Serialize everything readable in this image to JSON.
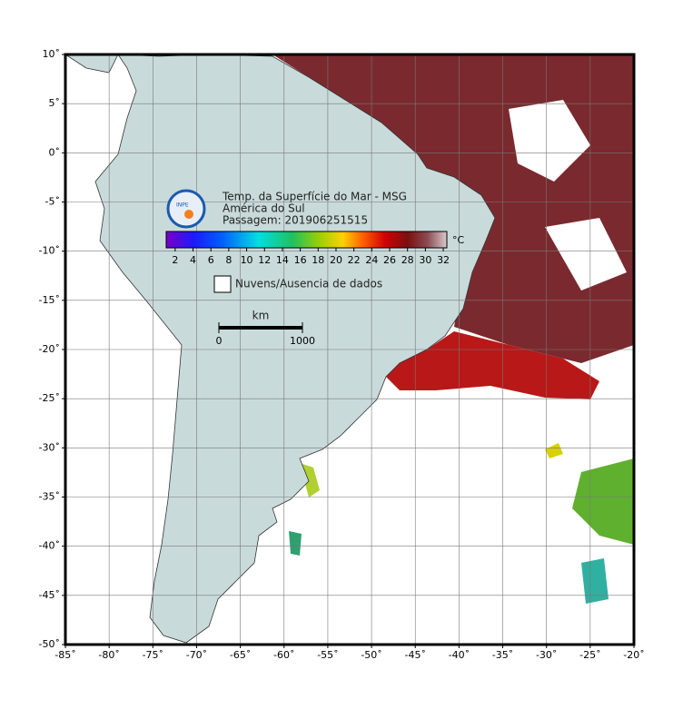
{
  "map": {
    "header": {
      "logo_text": "INPE",
      "lines": [
        "Temp. da Superfície do Mar - MSG",
        "América do Sul",
        "Passagem: 201906251515"
      ]
    },
    "colorbar": {
      "unit": "°C",
      "lim": [
        1,
        32.4
      ],
      "ticks": [
        2,
        4,
        6,
        8,
        10,
        12,
        14,
        16,
        18,
        20,
        22,
        24,
        26,
        28,
        30,
        32
      ]
    },
    "legend": {
      "label": "Nuvens/Ausencia de dados"
    },
    "scale_bar": {
      "unit": "km",
      "ticks": [
        0,
        1000
      ]
    },
    "axes": {
      "xlim": [
        -85,
        -20
      ],
      "ylim": [
        -50,
        10
      ],
      "xticks": [
        {
          "value": -85,
          "label": "-85˚"
        },
        {
          "value": -80,
          "label": "-80˚"
        },
        {
          "value": -75,
          "label": "-75˚"
        },
        {
          "value": -70,
          "label": "-70˚"
        },
        {
          "value": -65,
          "label": "-65˚"
        },
        {
          "value": -60,
          "label": "-60˚"
        },
        {
          "value": -55,
          "label": "-55˚"
        },
        {
          "value": -50,
          "label": "-50˚"
        },
        {
          "value": -45,
          "label": "-45˚"
        },
        {
          "value": -40,
          "label": "-40˚"
        },
        {
          "value": -35,
          "label": "-35˚"
        },
        {
          "value": -30,
          "label": "-30˚"
        },
        {
          "value": -25,
          "label": "-25˚"
        },
        {
          "value": -20,
          "label": "-20˚"
        }
      ],
      "yticks": [
        {
          "value": 10,
          "label": "10˚"
        },
        {
          "value": 5,
          "label": "5˚"
        },
        {
          "value": 0,
          "label": "0˚"
        },
        {
          "value": -5,
          "label": "-5˚"
        },
        {
          "value": -10,
          "label": "-10˚"
        },
        {
          "value": -15,
          "label": "-15˚"
        },
        {
          "value": -20,
          "label": "-20˚"
        },
        {
          "value": -25,
          "label": "-25˚"
        },
        {
          "value": -30,
          "label": "-30˚"
        },
        {
          "value": -35,
          "label": "-35˚"
        },
        {
          "value": -40,
          "label": "-40˚"
        },
        {
          "value": -45,
          "label": "-45˚"
        },
        {
          "value": -50,
          "label": "-50˚"
        }
      ],
      "grid": true
    }
  }
}
